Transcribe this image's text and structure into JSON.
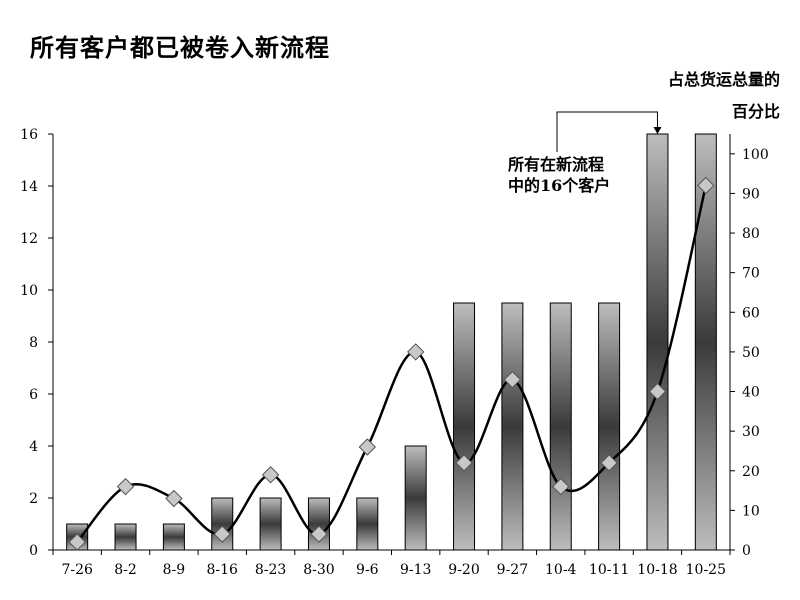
{
  "chart_data": {
    "type": "bar",
    "title": "所有客户都已被卷入新流程",
    "right_axis_title": [
      "占总货运总量的",
      "百分比"
    ],
    "categories": [
      "7-26",
      "8-2",
      "8-9",
      "8-16",
      "8-23",
      "8-30",
      "9-6",
      "9-13",
      "9-20",
      "9-27",
      "10-4",
      "10-11",
      "10-18",
      "10-25"
    ],
    "series": [
      {
        "axis": "left",
        "type": "bar",
        "values": [
          1,
          1,
          1,
          2,
          2,
          2,
          2,
          4,
          9.5,
          9.5,
          9.5,
          9.5,
          16,
          16
        ]
      },
      {
        "axis": "right",
        "type": "line",
        "marker": "diamond",
        "values": [
          2,
          16,
          13,
          4,
          19,
          4,
          26,
          50,
          22,
          43,
          16,
          22,
          40,
          92
        ]
      }
    ],
    "y_left": {
      "range": [
        0,
        16
      ],
      "ticks": [
        0,
        2,
        4,
        6,
        8,
        10,
        12,
        14,
        16
      ]
    },
    "y_right": {
      "range": [
        0,
        105
      ],
      "ticks": [
        0,
        10,
        20,
        30,
        40,
        50,
        60,
        70,
        80,
        90,
        100
      ]
    },
    "annotation": {
      "lines": [
        "所有在新流程",
        "中的16个客户"
      ],
      "target_category": "10-18"
    },
    "grid": false
  }
}
